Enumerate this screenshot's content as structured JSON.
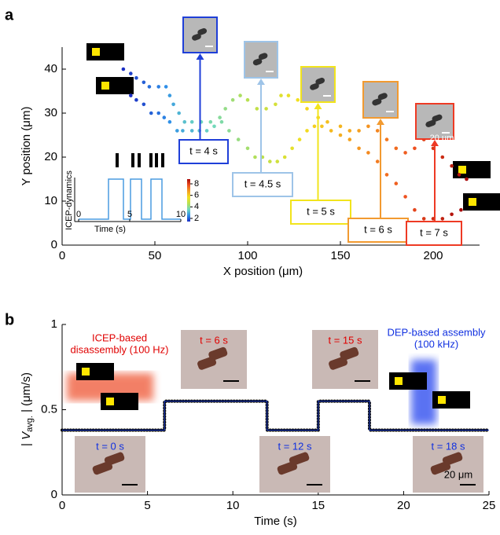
{
  "chart_data": [
    {
      "type": "scatter",
      "panel_label": "a",
      "xlabel": "X position (μm)",
      "ylabel": "Y position (μm)",
      "xlim": [
        0,
        225
      ],
      "ylim": [
        0,
        45
      ],
      "xticks": [
        0,
        50,
        100,
        150,
        200
      ],
      "yticks": [
        0,
        10,
        20,
        30,
        40
      ],
      "colormap": [
        "#1b2fc4",
        "#2f8fe8",
        "#6fd8c0",
        "#b8e050",
        "#f2e020",
        "#f5a020",
        "#ee5020",
        "#a80808"
      ],
      "series": [
        {
          "x": [
            33,
            37,
            40,
            44,
            47,
            52,
            56,
            58,
            60,
            63,
            66,
            70,
            75,
            80,
            85,
            88,
            92,
            96,
            100,
            105,
            110,
            115,
            118,
            122,
            127,
            132,
            138,
            143,
            150,
            155,
            160,
            165,
            170,
            175,
            180,
            185,
            190,
            195,
            200,
            205,
            210,
            214,
            218
          ],
          "y": [
            40,
            39,
            38,
            37,
            36,
            36,
            36,
            34,
            32,
            30,
            28,
            28,
            28,
            28,
            29,
            31,
            33,
            34,
            33,
            31,
            31,
            32,
            34,
            34,
            33,
            31,
            29,
            28,
            27,
            26,
            26,
            27,
            26,
            24,
            22,
            21,
            22,
            24,
            22,
            20,
            18,
            16,
            15
          ]
        },
        {
          "x": [
            37,
            40,
            44,
            48,
            52,
            55,
            58,
            62,
            65,
            70,
            74,
            78,
            82,
            86,
            90,
            95,
            100,
            104,
            108,
            112,
            116,
            120,
            124,
            128,
            132,
            136,
            140,
            145,
            150,
            155,
            160,
            165,
            170,
            175,
            180,
            185,
            190,
            195,
            200,
            205,
            210,
            215
          ],
          "y": [
            34,
            33,
            32,
            30,
            30,
            29,
            28,
            26,
            26,
            26,
            26,
            26,
            27,
            28,
            26,
            24,
            22,
            20,
            20,
            19,
            19,
            20,
            22,
            24,
            26,
            27,
            27,
            26,
            25,
            24,
            22,
            21,
            19,
            16,
            14,
            11,
            8,
            6,
            6,
            6,
            7,
            8
          ]
        }
      ],
      "annotations": [
        "t = 4 s",
        "t = 4.5 s",
        "t = 5 s",
        "t = 6 s",
        "t = 7 s"
      ],
      "scale_bar": "20 μm",
      "inset": {
        "ylabel": "ICEP-dynamics",
        "xlabel": "Time (s)",
        "xticks": [
          0,
          5,
          10
        ],
        "colorbar_ticks": [
          2,
          4,
          6,
          8
        ]
      }
    },
    {
      "type": "line",
      "panel_label": "b",
      "xlabel": "Time (s)",
      "ylabel": "V",
      "ylabel_sub": "avg.",
      "ylabel_unit": "(μm/s)",
      "xlim": [
        0,
        25
      ],
      "ylim": [
        0,
        1
      ],
      "xticks": [
        0,
        5,
        10,
        15,
        20,
        25
      ],
      "yticks": [
        0,
        0.5,
        1
      ],
      "x": [
        0,
        6,
        6,
        12,
        12,
        15,
        15,
        18,
        18,
        25
      ],
      "values": [
        0.38,
        0.38,
        0.55,
        0.55,
        0.38,
        0.38,
        0.55,
        0.55,
        0.38,
        0.38
      ],
      "color": "#000000",
      "annotations": [
        "ICEP-based",
        "disassembly (100 Hz)",
        "DEP-based assembly",
        "(100 kHz)"
      ],
      "time_labels": [
        "t = 6 s",
        "t = 15 s",
        "t = 0 s",
        "t = 12 s",
        "t = 18 s"
      ],
      "scale_bar": "20 μm"
    }
  ]
}
